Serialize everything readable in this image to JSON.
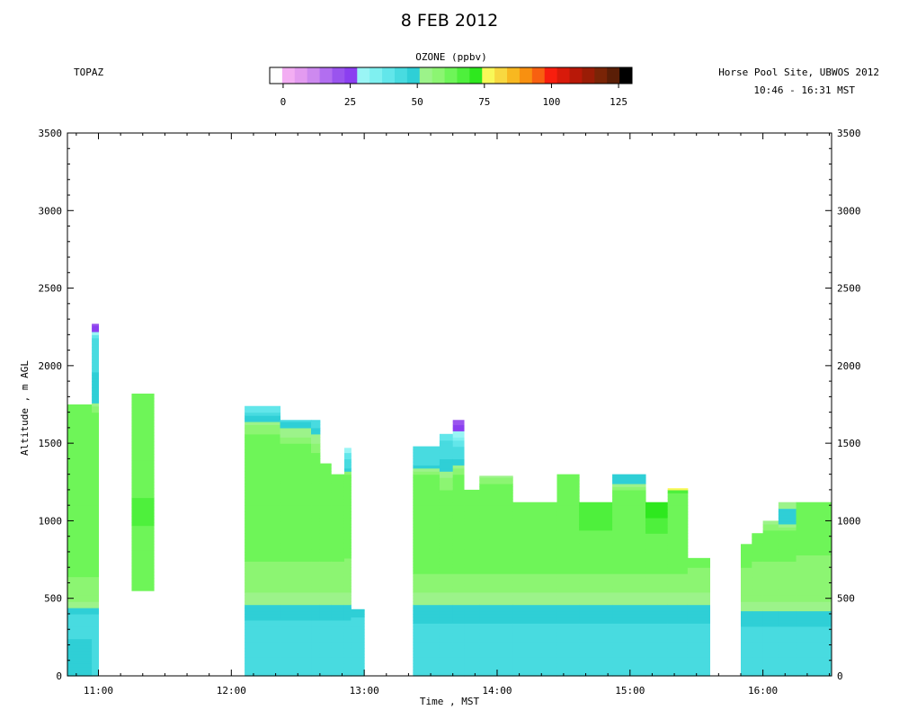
{
  "header": {
    "title": "8 FEB 2012",
    "instrument": "TOPAZ",
    "site": "Horse Pool Site, UBWOS 2012",
    "time_range": "10:46 - 16:31 MST"
  },
  "colorbar": {
    "label": "OZONE (ppbv)",
    "ticks": [
      "0",
      "25",
      "50",
      "75",
      "100",
      "125"
    ],
    "tick_values": [
      0,
      25,
      50,
      75,
      100,
      125
    ],
    "range": [
      -5,
      130
    ],
    "colors": [
      "#ffffff",
      "#f3aef3",
      "#e39bf0",
      "#cd89ef",
      "#b26ef0",
      "#9a54ee",
      "#8b3ff0",
      "#9af5f5",
      "#7ff0f0",
      "#62e6ea",
      "#48dbe0",
      "#2fcfd6",
      "#9cf38a",
      "#8cf572",
      "#6ef558",
      "#4ef03c",
      "#2ee81e",
      "#f8f858",
      "#f8d840",
      "#f8b820",
      "#f89010",
      "#f86010",
      "#f81e0e",
      "#d81a0a",
      "#b81808",
      "#9a1c06",
      "#7a2406",
      "#5a1e06",
      "#000000"
    ]
  },
  "chart_data": {
    "type": "heatmap",
    "title": "8 FEB 2012",
    "xlabel": "Time , MST",
    "ylabel": "Altitude , m AGL",
    "xlim": [
      "10:46",
      "16:31"
    ],
    "ylim": [
      0,
      3500
    ],
    "x_ticks": [
      "11:00",
      "12:00",
      "13:00",
      "14:00",
      "15:00",
      "16:00"
    ],
    "y_ticks": [
      "0",
      "500",
      "1000",
      "1500",
      "2000",
      "2500",
      "3000",
      "3500"
    ],
    "y_tick_values": [
      0,
      500,
      1000,
      1500,
      2000,
      2500,
      3000,
      3500
    ],
    "colorbar_label": "OZONE (ppbv)",
    "profiles": [
      {
        "start": "10:46",
        "end": "10:57",
        "top": 1750,
        "ozone": [
          [
            0,
            48
          ],
          [
            400,
            45
          ],
          [
            470,
            55
          ],
          [
            700,
            62
          ],
          [
            1750,
            62
          ]
        ]
      },
      {
        "start": "10:57",
        "end": "11:00",
        "top": 2270,
        "ozone": [
          [
            0,
            46
          ],
          [
            400,
            45
          ],
          [
            470,
            55
          ],
          [
            700,
            62
          ],
          [
            1700,
            62
          ],
          [
            1760,
            50
          ],
          [
            2180,
            42
          ],
          [
            2230,
            25
          ],
          [
            2270,
            22
          ]
        ]
      },
      {
        "start": "11:15",
        "end": "11:25",
        "top": 1820,
        "ozone": [
          [
            550,
            63
          ],
          [
            1000,
            65
          ],
          [
            1820,
            64
          ]
        ]
      },
      {
        "start": "12:06",
        "end": "12:22",
        "top": 1740,
        "ozone": [
          [
            0,
            45
          ],
          [
            300,
            43
          ],
          [
            450,
            50
          ],
          [
            520,
            55
          ],
          [
            700,
            60
          ],
          [
            1500,
            64
          ],
          [
            1620,
            55
          ],
          [
            1700,
            42
          ],
          [
            1740,
            38
          ]
        ]
      },
      {
        "start": "12:22",
        "end": "12:36",
        "top": 1650,
        "ozone": [
          [
            0,
            45
          ],
          [
            300,
            43
          ],
          [
            450,
            50
          ],
          [
            520,
            55
          ],
          [
            700,
            60
          ],
          [
            1450,
            64
          ],
          [
            1550,
            55
          ],
          [
            1650,
            45
          ]
        ]
      },
      {
        "start": "12:36",
        "end": "12:40",
        "top": 1650,
        "ozone": [
          [
            0,
            45
          ],
          [
            300,
            43
          ],
          [
            450,
            50
          ],
          [
            520,
            55
          ],
          [
            700,
            60
          ],
          [
            1400,
            64
          ],
          [
            1500,
            55
          ],
          [
            1650,
            43
          ]
        ]
      },
      {
        "start": "12:40",
        "end": "12:45",
        "top": 1370,
        "ozone": [
          [
            0,
            45
          ],
          [
            300,
            43
          ],
          [
            450,
            50
          ],
          [
            520,
            55
          ],
          [
            700,
            60
          ],
          [
            1370,
            63
          ]
        ]
      },
      {
        "start": "12:45",
        "end": "12:51",
        "top": 1300,
        "ozone": [
          [
            0,
            45
          ],
          [
            300,
            43
          ],
          [
            450,
            50
          ],
          [
            520,
            55
          ],
          [
            700,
            60
          ],
          [
            1300,
            63
          ]
        ]
      },
      {
        "start": "12:51",
        "end": "12:54",
        "top": 1470,
        "ozone": [
          [
            0,
            45
          ],
          [
            300,
            43
          ],
          [
            450,
            50
          ],
          [
            520,
            55
          ],
          [
            700,
            60
          ],
          [
            1300,
            62
          ],
          [
            1340,
            45
          ],
          [
            1420,
            40
          ],
          [
            1470,
            27
          ]
        ]
      },
      {
        "start": "12:54",
        "end": "13:00",
        "top": 430,
        "ozone": [
          [
            0,
            45
          ],
          [
            300,
            43
          ],
          [
            430,
            48
          ]
        ]
      },
      {
        "start": "13:22",
        "end": "13:34",
        "top": 1480,
        "ozone": [
          [
            0,
            44
          ],
          [
            300,
            45
          ],
          [
            480,
            52
          ],
          [
            520,
            55
          ],
          [
            700,
            62
          ],
          [
            1300,
            62
          ],
          [
            1360,
            45
          ],
          [
            1480,
            42
          ]
        ]
      },
      {
        "start": "13:34",
        "end": "13:40",
        "top": 1560,
        "ozone": [
          [
            0,
            44
          ],
          [
            300,
            45
          ],
          [
            480,
            52
          ],
          [
            520,
            55
          ],
          [
            700,
            62
          ],
          [
            1250,
            60
          ],
          [
            1350,
            48
          ],
          [
            1450,
            45
          ],
          [
            1520,
            42
          ],
          [
            1560,
            38
          ]
        ]
      },
      {
        "start": "13:40",
        "end": "13:45",
        "top": 1650,
        "ozone": [
          [
            0,
            44
          ],
          [
            300,
            45
          ],
          [
            480,
            52
          ],
          [
            520,
            55
          ],
          [
            700,
            62
          ],
          [
            1300,
            62
          ],
          [
            1380,
            47
          ],
          [
            1500,
            40
          ],
          [
            1600,
            24
          ],
          [
            1650,
            22
          ]
        ]
      },
      {
        "start": "13:45",
        "end": "13:52",
        "top": 1200,
        "ozone": [
          [
            0,
            44
          ],
          [
            300,
            45
          ],
          [
            480,
            52
          ],
          [
            520,
            55
          ],
          [
            700,
            62
          ],
          [
            1200,
            63
          ]
        ]
      },
      {
        "start": "13:52",
        "end": "14:07",
        "top": 1290,
        "ozone": [
          [
            0,
            44
          ],
          [
            300,
            45
          ],
          [
            480,
            52
          ],
          [
            520,
            55
          ],
          [
            700,
            62
          ],
          [
            1220,
            62
          ],
          [
            1290,
            55
          ]
        ]
      },
      {
        "start": "14:07",
        "end": "14:27",
        "top": 1120,
        "ozone": [
          [
            0,
            44
          ],
          [
            300,
            45
          ],
          [
            480,
            52
          ],
          [
            520,
            55
          ],
          [
            700,
            62
          ],
          [
            1120,
            64
          ]
        ]
      },
      {
        "start": "14:27",
        "end": "14:37",
        "top": 1300,
        "ozone": [
          [
            0,
            44
          ],
          [
            300,
            45
          ],
          [
            480,
            52
          ],
          [
            520,
            55
          ],
          [
            700,
            62
          ],
          [
            1300,
            63
          ]
        ]
      },
      {
        "start": "14:37",
        "end": "14:52",
        "top": 1120,
        "ozone": [
          [
            0,
            44
          ],
          [
            300,
            45
          ],
          [
            480,
            52
          ],
          [
            520,
            55
          ],
          [
            700,
            62
          ],
          [
            1120,
            67
          ]
        ]
      },
      {
        "start": "14:52",
        "end": "15:07",
        "top": 1300,
        "ozone": [
          [
            0,
            44
          ],
          [
            300,
            45
          ],
          [
            480,
            52
          ],
          [
            520,
            55
          ],
          [
            700,
            62
          ],
          [
            1200,
            62
          ],
          [
            1250,
            50
          ],
          [
            1300,
            47
          ]
        ]
      },
      {
        "start": "15:07",
        "end": "15:17",
        "top": 1120,
        "ozone": [
          [
            0,
            44
          ],
          [
            300,
            45
          ],
          [
            480,
            52
          ],
          [
            520,
            55
          ],
          [
            700,
            62
          ],
          [
            1000,
            66
          ],
          [
            1060,
            74
          ],
          [
            1120,
            72
          ]
        ]
      },
      {
        "start": "15:17",
        "end": "15:26",
        "top": 1210,
        "ozone": [
          [
            0,
            44
          ],
          [
            300,
            45
          ],
          [
            480,
            52
          ],
          [
            520,
            55
          ],
          [
            700,
            62
          ],
          [
            1180,
            63
          ],
          [
            1210,
            80
          ]
        ]
      },
      {
        "start": "15:26",
        "end": "15:36",
        "top": 760,
        "ozone": [
          [
            0,
            44
          ],
          [
            300,
            45
          ],
          [
            480,
            52
          ],
          [
            520,
            55
          ],
          [
            760,
            62
          ]
        ]
      },
      {
        "start": "15:50",
        "end": "15:55",
        "top": 850,
        "ozone": [
          [
            0,
            42
          ],
          [
            300,
            45
          ],
          [
            440,
            52
          ],
          [
            520,
            58
          ],
          [
            850,
            62
          ]
        ]
      },
      {
        "start": "15:55",
        "end": "16:00",
        "top": 920,
        "ozone": [
          [
            0,
            42
          ],
          [
            300,
            45
          ],
          [
            440,
            52
          ],
          [
            520,
            58
          ],
          [
            920,
            62
          ]
        ]
      },
      {
        "start": "16:00",
        "end": "16:07",
        "top": 1000,
        "ozone": [
          [
            0,
            42
          ],
          [
            300,
            45
          ],
          [
            440,
            52
          ],
          [
            520,
            58
          ],
          [
            940,
            62
          ],
          [
            1000,
            50
          ]
        ]
      },
      {
        "start": "16:07",
        "end": "16:15",
        "top": 1120,
        "ozone": [
          [
            0,
            42
          ],
          [
            300,
            45
          ],
          [
            440,
            52
          ],
          [
            520,
            58
          ],
          [
            920,
            62
          ],
          [
            1000,
            48
          ],
          [
            1120,
            52
          ]
        ]
      },
      {
        "start": "16:15",
        "end": "16:31",
        "top": 1120,
        "ozone": [
          [
            0,
            42
          ],
          [
            300,
            45
          ],
          [
            440,
            52
          ],
          [
            520,
            58
          ],
          [
            1120,
            63
          ]
        ]
      }
    ]
  }
}
